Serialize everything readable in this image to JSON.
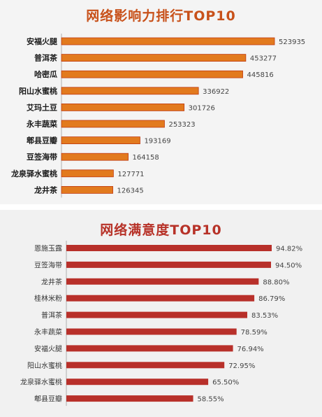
{
  "colors": {
    "top_bar": "#e27a1e",
    "top_bar_edge": "#c0390f",
    "bottom_bar": "#b8302a",
    "top_title": "#c8511a",
    "bottom_title": "#b73228",
    "axis": "#b0b0b0"
  },
  "chart_data": [
    {
      "type": "bar",
      "orientation": "horizontal",
      "title": "网络影响力排行TOP10",
      "categories": [
        "安福火腿",
        "普洱茶",
        "哈密瓜",
        "阳山水蜜桃",
        "艾玛土豆",
        "永丰蔬菜",
        "郫县豆瓣",
        "豆签海带",
        "龙泉驿水蜜桃",
        "龙井茶"
      ],
      "values": [
        523935,
        453277,
        445816,
        336922,
        301726,
        253323,
        193169,
        164158,
        127771,
        126345
      ],
      "value_labels": [
        "523935",
        "453277",
        "445816",
        "336922",
        "301726",
        "253323",
        "193169",
        "164158",
        "127771",
        "126345"
      ],
      "xlim": [
        0,
        523935
      ],
      "grid": false,
      "legend": "none"
    },
    {
      "type": "bar",
      "orientation": "horizontal",
      "title": "网络满意度TOP10",
      "categories": [
        "恩施玉露",
        "豆签海带",
        "龙井茶",
        "桂林米粉",
        "普洱茶",
        "永丰蔬菜",
        "安福火腿",
        "阳山水蜜桃",
        "龙泉驿水蜜桃",
        "郫县豆瓣"
      ],
      "values": [
        94.82,
        94.5,
        88.8,
        86.79,
        83.53,
        78.59,
        76.94,
        72.95,
        65.5,
        58.55
      ],
      "value_labels": [
        "94.82%",
        "94.50%",
        "88.80%",
        "86.79%",
        "83.53%",
        "78.59%",
        "76.94%",
        "72.95%",
        "65.50%",
        "58.55%"
      ],
      "xlim": [
        0,
        94.82
      ],
      "grid": false,
      "legend": "none"
    }
  ]
}
